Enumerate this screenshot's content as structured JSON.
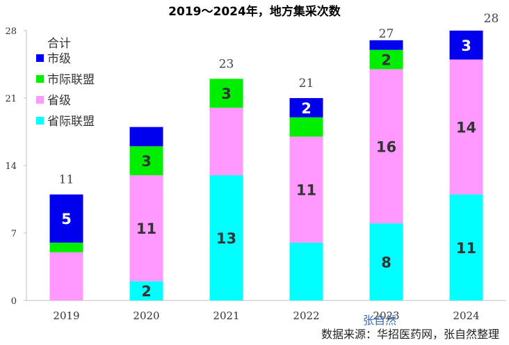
{
  "chart_data": {
    "type": "bar",
    "stacked": true,
    "title": "2019～2024年，地方集采次数",
    "categories": [
      "2019",
      "2020",
      "2021",
      "2022",
      "2023",
      "2024"
    ],
    "series": [
      {
        "name": "省际联盟",
        "color": "#00ffff",
        "values": [
          0,
          2,
          13,
          6,
          8,
          11
        ],
        "labels": [
          "",
          "2",
          "13",
          "",
          "8",
          "11"
        ]
      },
      {
        "name": "省级",
        "color": "#ff99ff",
        "values": [
          5,
          11,
          7,
          11,
          16,
          14
        ],
        "labels": [
          "",
          "11",
          "",
          "11",
          "16",
          "14"
        ]
      },
      {
        "name": "市际联盟",
        "color": "#00ee00",
        "values": [
          1,
          3,
          3,
          2,
          2,
          0
        ],
        "labels": [
          "",
          "3",
          "3",
          "",
          "2",
          ""
        ]
      },
      {
        "name": "市级",
        "color": "#0000ee",
        "values": [
          5,
          2,
          0,
          2,
          1,
          3
        ],
        "labels": [
          "5",
          "",
          "",
          "2",
          "",
          "3"
        ]
      }
    ],
    "totals_name": "合计",
    "totals": [
      "11",
      "",
      "23",
      "21",
      "27",
      "28"
    ],
    "ylim": [
      0,
      28
    ],
    "yticks": [
      "0",
      "7",
      "14",
      "21",
      "28"
    ],
    "grid": false,
    "legend_position": "top-left"
  },
  "source_note": "数据来源：华招医药网，张自然整理",
  "watermark": "张自然"
}
